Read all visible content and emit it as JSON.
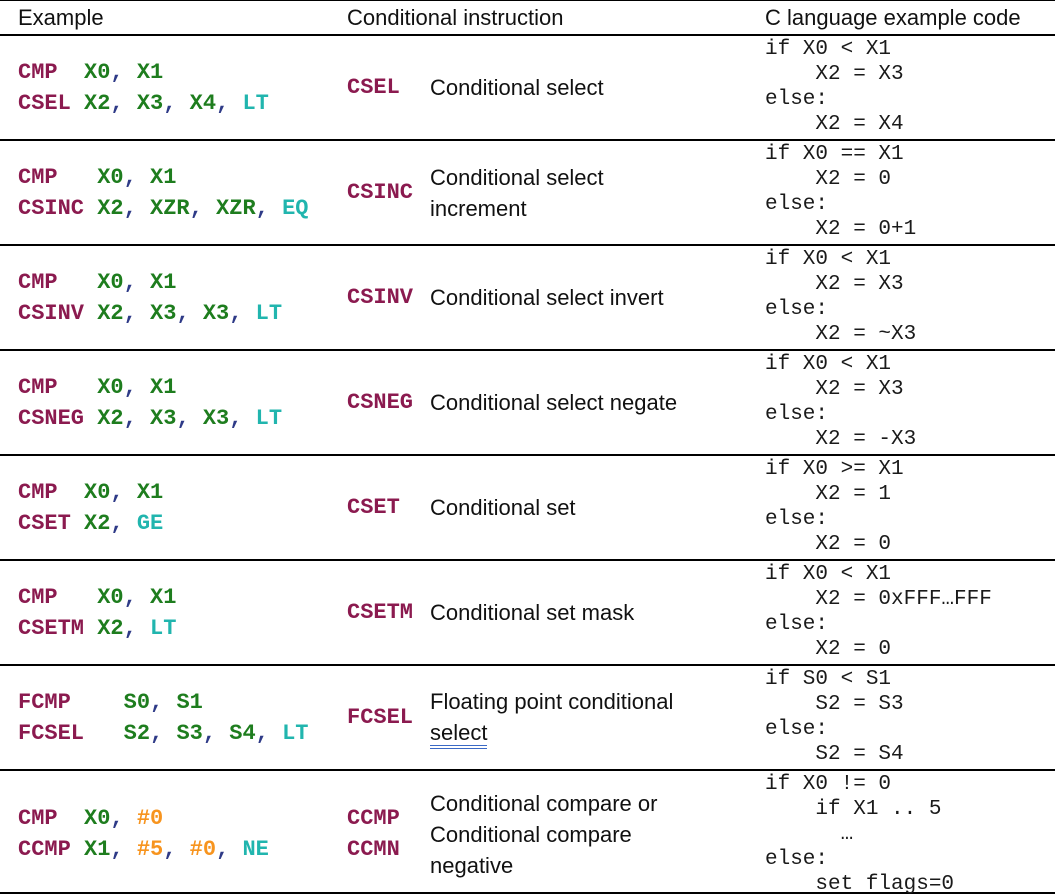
{
  "colors": {
    "mnemonic": "#8B1A4F",
    "register": "#1E7D1E",
    "immediate": "#F7941E",
    "condition": "#21B5AE",
    "comma": "#2E3A87",
    "code_text": "#1A1A1A",
    "underline": "#3B69C5",
    "border": "#000000"
  },
  "header": {
    "example": "Example",
    "instruction": "Conditional instruction",
    "code": "C language example code"
  },
  "rows": [
    {
      "example_lines": [
        [
          [
            "CMP",
            "m"
          ],
          [
            "  ",
            ""
          ],
          [
            "X0",
            "r"
          ],
          [
            ",",
            "c"
          ],
          [
            " ",
            ""
          ],
          [
            "X1",
            "r"
          ]
        ],
        [
          [
            "CSEL",
            "m"
          ],
          [
            " ",
            ""
          ],
          [
            "X2",
            "r"
          ],
          [
            ",",
            "c"
          ],
          [
            " ",
            ""
          ],
          [
            "X3",
            "r"
          ],
          [
            ",",
            "c"
          ],
          [
            " ",
            ""
          ],
          [
            "X4",
            "r"
          ],
          [
            ",",
            "c"
          ],
          [
            " ",
            ""
          ],
          [
            "LT",
            "k"
          ]
        ]
      ],
      "mnemonics": [
        "CSEL"
      ],
      "description_lines": [
        {
          "text": "Conditional select"
        }
      ],
      "code_lines": [
        "if X0 < X1",
        "    X2 = X3",
        "else:",
        "    X2 = X4"
      ]
    },
    {
      "example_lines": [
        [
          [
            "CMP",
            "m"
          ],
          [
            "   ",
            ""
          ],
          [
            "X0",
            "r"
          ],
          [
            ",",
            "c"
          ],
          [
            " ",
            ""
          ],
          [
            "X1",
            "r"
          ]
        ],
        [
          [
            "CSINC",
            "m"
          ],
          [
            " ",
            ""
          ],
          [
            "X2",
            "r"
          ],
          [
            ",",
            "c"
          ],
          [
            " ",
            ""
          ],
          [
            "XZR",
            "r"
          ],
          [
            ",",
            "c"
          ],
          [
            " ",
            ""
          ],
          [
            "XZR",
            "r"
          ],
          [
            ",",
            "c"
          ],
          [
            " ",
            ""
          ],
          [
            "EQ",
            "k"
          ]
        ]
      ],
      "mnemonics": [
        "CSINC"
      ],
      "description_lines": [
        {
          "text": "Conditional select"
        },
        {
          "text": "increment"
        }
      ],
      "code_lines": [
        "if X0 == X1",
        "    X2 = 0",
        "else:",
        "    X2 = 0+1"
      ]
    },
    {
      "example_lines": [
        [
          [
            "CMP",
            "m"
          ],
          [
            "   ",
            ""
          ],
          [
            "X0",
            "r"
          ],
          [
            ",",
            "c"
          ],
          [
            " ",
            ""
          ],
          [
            "X1",
            "r"
          ]
        ],
        [
          [
            "CSINV",
            "m"
          ],
          [
            " ",
            ""
          ],
          [
            "X2",
            "r"
          ],
          [
            ",",
            "c"
          ],
          [
            " ",
            ""
          ],
          [
            "X3",
            "r"
          ],
          [
            ",",
            "c"
          ],
          [
            " ",
            ""
          ],
          [
            "X3",
            "r"
          ],
          [
            ",",
            "c"
          ],
          [
            " ",
            ""
          ],
          [
            "LT",
            "k"
          ]
        ]
      ],
      "mnemonics": [
        "CSINV"
      ],
      "description_lines": [
        {
          "text": "Conditional select invert"
        }
      ],
      "code_lines": [
        "if X0 < X1",
        "    X2 = X3",
        "else:",
        "    X2 = ~X3"
      ]
    },
    {
      "example_lines": [
        [
          [
            "CMP",
            "m"
          ],
          [
            "   ",
            ""
          ],
          [
            "X0",
            "r"
          ],
          [
            ",",
            "c"
          ],
          [
            " ",
            ""
          ],
          [
            "X1",
            "r"
          ]
        ],
        [
          [
            "CSNEG",
            "m"
          ],
          [
            " ",
            ""
          ],
          [
            "X2",
            "r"
          ],
          [
            ",",
            "c"
          ],
          [
            " ",
            ""
          ],
          [
            "X3",
            "r"
          ],
          [
            ",",
            "c"
          ],
          [
            " ",
            ""
          ],
          [
            "X3",
            "r"
          ],
          [
            ",",
            "c"
          ],
          [
            " ",
            ""
          ],
          [
            "LT",
            "k"
          ]
        ]
      ],
      "mnemonics": [
        "CSNEG"
      ],
      "description_lines": [
        {
          "text": "Conditional select negate"
        }
      ],
      "code_lines": [
        "if X0 < X1",
        "    X2 = X3",
        "else:",
        "    X2 = -X3"
      ]
    },
    {
      "example_lines": [
        [
          [
            "CMP",
            "m"
          ],
          [
            "  ",
            ""
          ],
          [
            "X0",
            "r"
          ],
          [
            ",",
            "c"
          ],
          [
            " ",
            ""
          ],
          [
            "X1",
            "r"
          ]
        ],
        [
          [
            "CSET",
            "m"
          ],
          [
            " ",
            ""
          ],
          [
            "X2",
            "r"
          ],
          [
            ",",
            "c"
          ],
          [
            " ",
            ""
          ],
          [
            "GE",
            "k"
          ]
        ]
      ],
      "mnemonics": [
        "CSET"
      ],
      "description_lines": [
        {
          "text": "Conditional set"
        }
      ],
      "code_lines": [
        "if X0 >= X1",
        "    X2 = 1",
        "else:",
        "    X2 = 0"
      ]
    },
    {
      "example_lines": [
        [
          [
            "CMP",
            "m"
          ],
          [
            "   ",
            ""
          ],
          [
            "X0",
            "r"
          ],
          [
            ",",
            "c"
          ],
          [
            " ",
            ""
          ],
          [
            "X1",
            "r"
          ]
        ],
        [
          [
            "CSETM",
            "m"
          ],
          [
            " ",
            ""
          ],
          [
            "X2",
            "r"
          ],
          [
            ",",
            "c"
          ],
          [
            " ",
            ""
          ],
          [
            "LT",
            "k"
          ]
        ]
      ],
      "mnemonics": [
        "CSETM"
      ],
      "description_lines": [
        {
          "text": "Conditional set mask"
        }
      ],
      "code_lines": [
        "if X0 < X1",
        "    X2 = 0xFFF…FFF",
        "else:",
        "    X2 = 0"
      ]
    },
    {
      "example_lines": [
        [
          [
            "FCMP",
            "m"
          ],
          [
            "    ",
            ""
          ],
          [
            "S0",
            "r"
          ],
          [
            ",",
            "c"
          ],
          [
            " ",
            ""
          ],
          [
            "S1",
            "r"
          ]
        ],
        [
          [
            "FCSEL",
            "m"
          ],
          [
            "   ",
            ""
          ],
          [
            "S2",
            "r"
          ],
          [
            ",",
            "c"
          ],
          [
            " ",
            ""
          ],
          [
            "S3",
            "r"
          ],
          [
            ",",
            "c"
          ],
          [
            " ",
            ""
          ],
          [
            "S4",
            "r"
          ],
          [
            ",",
            "c"
          ],
          [
            " ",
            ""
          ],
          [
            "LT",
            "k"
          ]
        ]
      ],
      "mnemonics": [
        "FCSEL"
      ],
      "description_lines": [
        {
          "text": "Floating point conditional"
        },
        {
          "text": "select",
          "underline": true
        }
      ],
      "code_lines": [
        "if S0 < S1",
        "    S2 = S3",
        "else:",
        "    S2 = S4"
      ]
    },
    {
      "example_lines": [
        [
          [
            "CMP",
            "m"
          ],
          [
            "  ",
            ""
          ],
          [
            "X0",
            "r"
          ],
          [
            ",",
            "c"
          ],
          [
            " ",
            ""
          ],
          [
            "#0",
            "i"
          ]
        ],
        [
          [
            "CCMP",
            "m"
          ],
          [
            " ",
            ""
          ],
          [
            "X1",
            "r"
          ],
          [
            ",",
            "c"
          ],
          [
            " ",
            ""
          ],
          [
            "#5",
            "i"
          ],
          [
            ",",
            "c"
          ],
          [
            " ",
            ""
          ],
          [
            "#0",
            "i"
          ],
          [
            ",",
            "c"
          ],
          [
            " ",
            ""
          ],
          [
            "NE",
            "k"
          ]
        ]
      ],
      "mnemonics": [
        "CCMP",
        "CCMN"
      ],
      "description_lines": [
        {
          "text": "Conditional compare or"
        },
        {
          "text": "Conditional compare"
        },
        {
          "text": "negative"
        }
      ],
      "code_lines": [
        "if X0 != 0",
        "    if X1 .. 5",
        "      …",
        "else:",
        "    set flags=0"
      ]
    }
  ]
}
